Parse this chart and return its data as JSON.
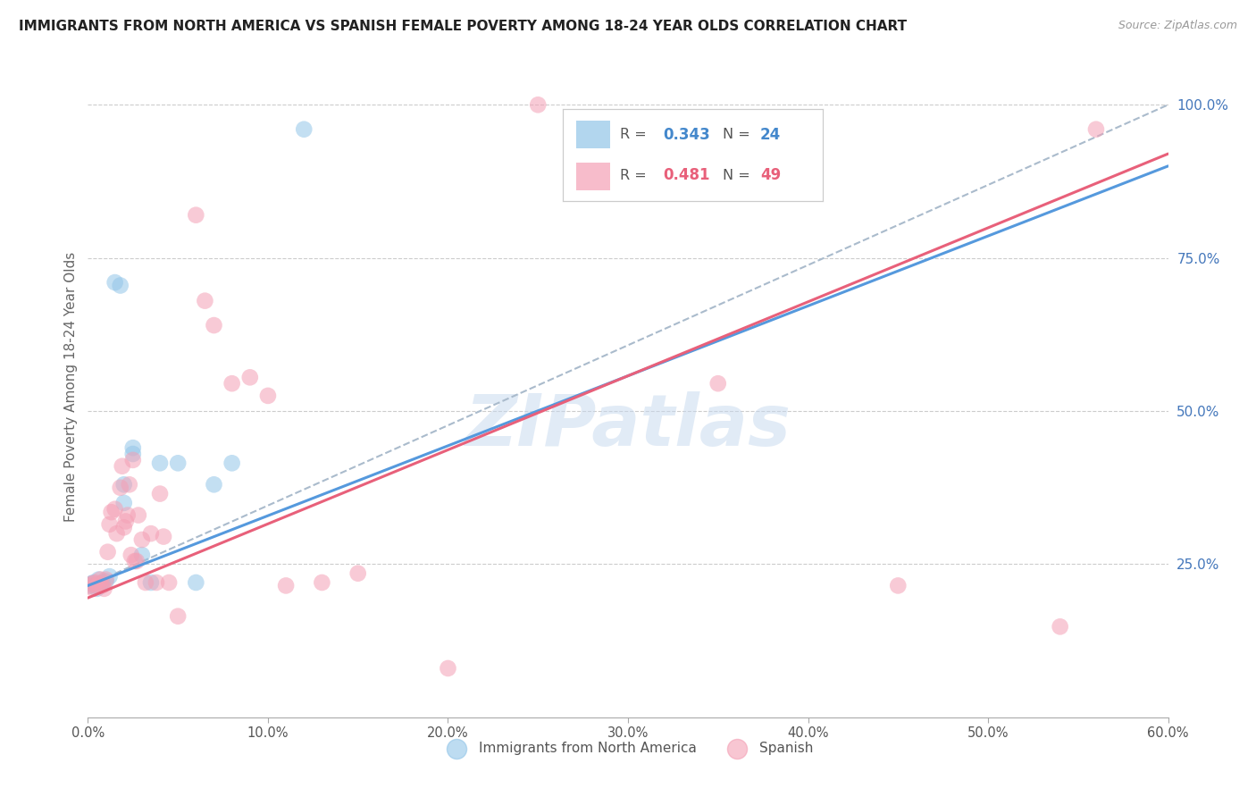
{
  "title": "IMMIGRANTS FROM NORTH AMERICA VS SPANISH FEMALE POVERTY AMONG 18-24 YEAR OLDS CORRELATION CHART",
  "source": "Source: ZipAtlas.com",
  "ylabel": "Female Poverty Among 18-24 Year Olds",
  "legend_label_blue": "Immigrants from North America",
  "legend_label_pink": "Spanish",
  "blue_color": "#92C5E8",
  "pink_color": "#F4A0B5",
  "blue_line_color": "#5599DD",
  "pink_line_color": "#E8607A",
  "dashed_line_color": "#AABBCC",
  "blue_R": "0.343",
  "blue_N": "24",
  "pink_R": "0.481",
  "pink_N": "49",
  "watermark_text": "ZIPatlas",
  "xlim": [
    0.0,
    0.6
  ],
  "ylim": [
    0.0,
    1.08
  ],
  "yticks": [
    0.25,
    0.5,
    0.75,
    1.0
  ],
  "xticks": [
    0.0,
    0.1,
    0.2,
    0.3,
    0.4,
    0.5,
    0.6
  ],
  "blue_x": [
    0.001,
    0.002,
    0.003,
    0.004,
    0.005,
    0.006,
    0.007,
    0.008,
    0.01,
    0.012,
    0.015,
    0.018,
    0.02,
    0.025,
    0.03,
    0.035,
    0.04,
    0.05,
    0.06,
    0.07,
    0.08,
    0.12,
    0.02,
    0.025
  ],
  "blue_y": [
    0.215,
    0.218,
    0.22,
    0.215,
    0.21,
    0.225,
    0.218,
    0.22,
    0.222,
    0.23,
    0.71,
    0.705,
    0.38,
    0.43,
    0.265,
    0.22,
    0.415,
    0.415,
    0.22,
    0.38,
    0.415,
    0.96,
    0.35,
    0.44
  ],
  "pink_x": [
    0.001,
    0.002,
    0.003,
    0.004,
    0.005,
    0.006,
    0.007,
    0.008,
    0.009,
    0.01,
    0.011,
    0.012,
    0.013,
    0.015,
    0.016,
    0.018,
    0.019,
    0.02,
    0.021,
    0.022,
    0.023,
    0.024,
    0.025,
    0.026,
    0.027,
    0.028,
    0.03,
    0.032,
    0.035,
    0.038,
    0.04,
    0.042,
    0.045,
    0.05,
    0.06,
    0.065,
    0.07,
    0.08,
    0.09,
    0.1,
    0.11,
    0.13,
    0.15,
    0.2,
    0.25,
    0.35,
    0.45,
    0.54,
    0.56
  ],
  "pink_y": [
    0.215,
    0.218,
    0.21,
    0.22,
    0.215,
    0.218,
    0.225,
    0.215,
    0.21,
    0.225,
    0.27,
    0.315,
    0.335,
    0.34,
    0.3,
    0.375,
    0.41,
    0.31,
    0.32,
    0.33,
    0.38,
    0.265,
    0.42,
    0.255,
    0.255,
    0.33,
    0.29,
    0.22,
    0.3,
    0.22,
    0.365,
    0.295,
    0.22,
    0.165,
    0.82,
    0.68,
    0.64,
    0.545,
    0.555,
    0.525,
    0.215,
    0.22,
    0.235,
    0.08,
    1.0,
    0.545,
    0.215,
    0.148,
    0.96
  ],
  "blue_line_x": [
    0.0,
    0.6
  ],
  "blue_line_y": [
    0.215,
    0.9
  ],
  "pink_line_x": [
    0.0,
    0.6
  ],
  "pink_line_y": [
    0.195,
    0.92
  ],
  "dashed_line_x": [
    0.0,
    0.6
  ],
  "dashed_line_y": [
    0.215,
    1.0
  ]
}
